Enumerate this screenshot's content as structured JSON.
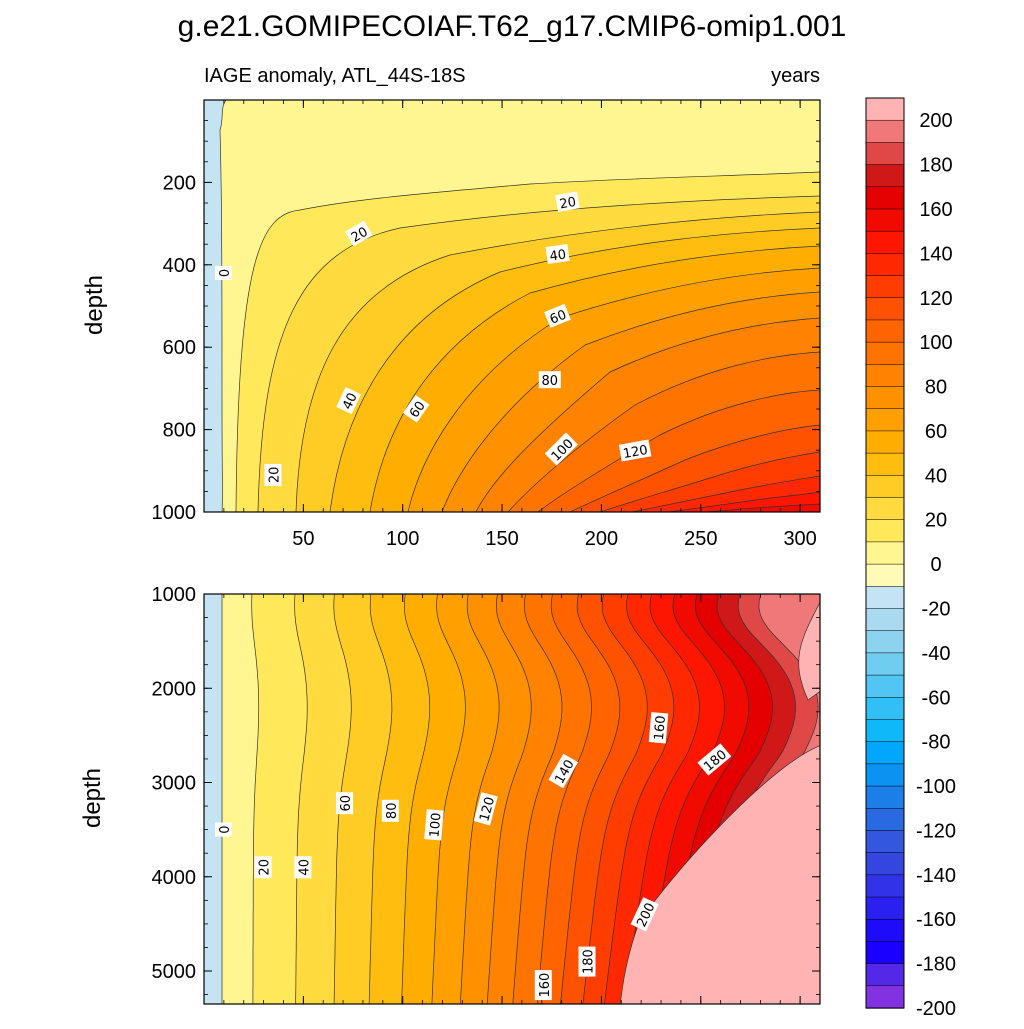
{
  "title": "g.e21.GOMIPECOIAF.T62_g17.CMIP6-omip1.001",
  "chart_data": {
    "type": "contour",
    "subtitle_left": "IAGE anomaly, ATL_44S-18S",
    "subtitle_right": "years",
    "xlim": [
      0,
      310
    ],
    "x_ticks": [
      "50",
      "100",
      "150",
      "200",
      "250",
      "300"
    ],
    "x_tick_values": [
      50,
      100,
      150,
      200,
      250,
      300
    ],
    "colorbar": {
      "levels": [
        -200,
        -190,
        -180,
        -170,
        -160,
        -150,
        -140,
        -130,
        -120,
        -110,
        -100,
        -90,
        -80,
        -70,
        -60,
        -50,
        -40,
        -30,
        -20,
        -10,
        0,
        10,
        20,
        30,
        40,
        50,
        60,
        70,
        80,
        90,
        100,
        110,
        120,
        130,
        140,
        150,
        160,
        170,
        180,
        190,
        200
      ],
      "tick_labels": [
        "200",
        "180",
        "160",
        "140",
        "120",
        "100",
        "80",
        "60",
        "40",
        "20",
        "0",
        "-20",
        "-40",
        "-60",
        "-80",
        "-100",
        "-120",
        "-140",
        "-160",
        "-180",
        "-200"
      ],
      "colors_top_to_bottom": [
        "#ffb3b3",
        "#f07878",
        "#e04848",
        "#d01818",
        "#e40000",
        "#f00a00",
        "#ff1600",
        "#ff2800",
        "#ff3d00",
        "#ff5200",
        "#ff6400",
        "#ff7300",
        "#ff8200",
        "#ff9100",
        "#ffa000",
        "#ffae00",
        "#ffbd10",
        "#ffcc26",
        "#ffdb40",
        "#ffe85a",
        "#fff591",
        "#fffab5",
        "#c4e4f4",
        "#a9daf0",
        "#8dd3f0",
        "#6fcdf0",
        "#52c6f2",
        "#30c0f5",
        "#0fb9f9",
        "#00a7fc",
        "#0b93f2",
        "#1c7fe8",
        "#2a6ae0",
        "#3357dd",
        "#3545e0",
        "#3232e8",
        "#2a20f0",
        "#1e0cf8",
        "#1a00ff",
        "#5528e8",
        "#8232e0"
      ]
    },
    "panels": [
      {
        "name": "upper",
        "ylabel": "depth",
        "ylim": [
          0,
          1000
        ],
        "y_ticks": [
          "200",
          "400",
          "600",
          "800",
          "1000"
        ],
        "y_tick_values": [
          200,
          400,
          600,
          800,
          1000
        ],
        "contour_labels": [
          {
            "text": "0",
            "x": 10,
            "y": 420,
            "angle": -90
          },
          {
            "text": "20",
            "x": 35,
            "y": 910,
            "angle": -90
          },
          {
            "text": "20",
            "x": 78,
            "y": 325,
            "angle": -30
          },
          {
            "text": "20",
            "x": 183,
            "y": 248,
            "angle": -10
          },
          {
            "text": "40",
            "x": 73,
            "y": 730,
            "angle": -65
          },
          {
            "text": "40",
            "x": 178,
            "y": 375,
            "angle": -8
          },
          {
            "text": "60",
            "x": 107,
            "y": 750,
            "angle": -55
          },
          {
            "text": "60",
            "x": 178,
            "y": 525,
            "angle": -22
          },
          {
            "text": "80",
            "x": 174,
            "y": 680,
            "angle": 0
          },
          {
            "text": "100",
            "x": 180,
            "y": 848,
            "angle": -45
          },
          {
            "text": "120",
            "x": 217,
            "y": 852,
            "angle": -10
          }
        ]
      },
      {
        "name": "lower",
        "ylabel": "depth",
        "ylim": [
          1000,
          5350
        ],
        "y_ticks": [
          "1000",
          "2000",
          "3000",
          "4000",
          "5000"
        ],
        "y_tick_values": [
          1000,
          2000,
          3000,
          4000,
          5000
        ],
        "contour_labels": [
          {
            "text": "0",
            "x": 10,
            "y": 3500,
            "angle": -90
          },
          {
            "text": "20",
            "x": 30,
            "y": 3900,
            "angle": -90
          },
          {
            "text": "40",
            "x": 50,
            "y": 3900,
            "angle": -90
          },
          {
            "text": "60",
            "x": 71,
            "y": 3220,
            "angle": -90
          },
          {
            "text": "80",
            "x": 94,
            "y": 3300,
            "angle": -90
          },
          {
            "text": "100",
            "x": 116,
            "y": 3450,
            "angle": -85
          },
          {
            "text": "120",
            "x": 142,
            "y": 3280,
            "angle": -75
          },
          {
            "text": "140",
            "x": 181,
            "y": 2880,
            "angle": -60
          },
          {
            "text": "160",
            "x": 229,
            "y": 2420,
            "angle": -85
          },
          {
            "text": "180",
            "x": 257,
            "y": 2760,
            "angle": -40
          },
          {
            "text": "160",
            "x": 171,
            "y": 5150,
            "angle": -90
          },
          {
            "text": "180",
            "x": 193,
            "y": 4900,
            "angle": -90
          },
          {
            "text": "200",
            "x": 222,
            "y": 4400,
            "angle": -65
          }
        ]
      }
    ]
  }
}
